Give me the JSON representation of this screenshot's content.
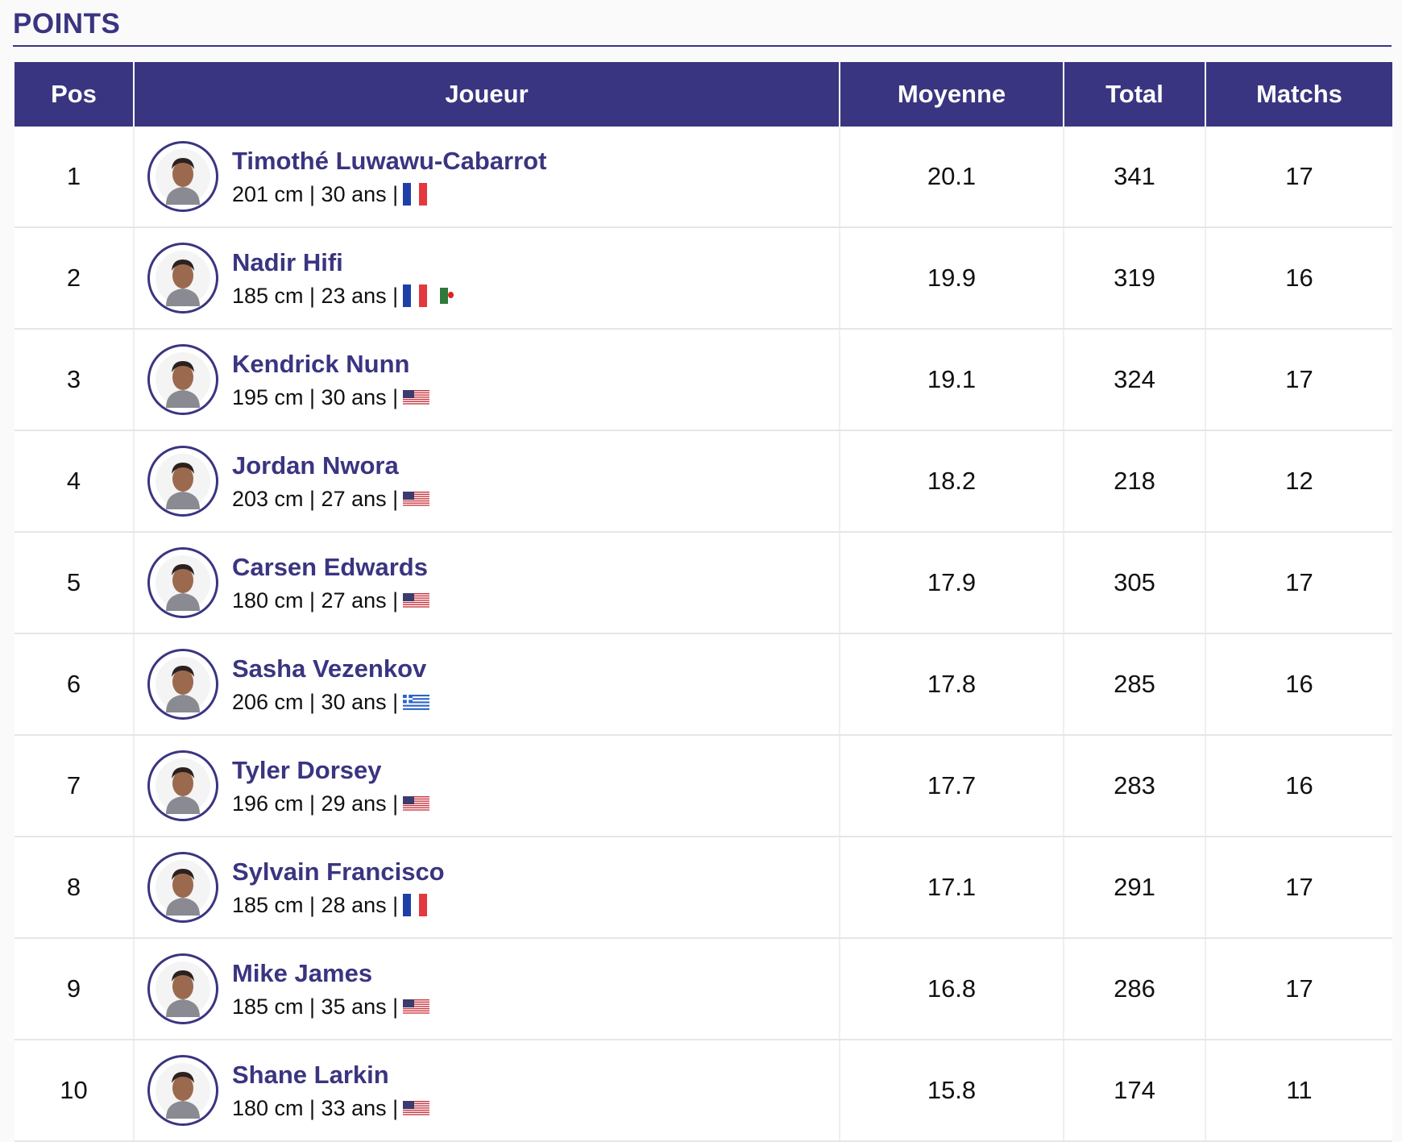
{
  "section_title": "POINTS",
  "headers": {
    "pos": "Pos",
    "player": "Joueur",
    "avg": "Moyenne",
    "total": "Total",
    "games": "Matchs"
  },
  "colors": {
    "primary": "#3a3580",
    "fr_blue": "#1f3fa8",
    "fr_red": "#e4383f",
    "us_red": "#c8323c",
    "gr_blue": "#2a63c8",
    "dz_green": "#2f7a3a"
  },
  "players": [
    {
      "pos": "1",
      "name": "Timothé Luwawu-Cabarrot",
      "meta": "201 cm | 30 ans |",
      "flags": [
        "fr"
      ],
      "avg": "20.1",
      "total": "341",
      "games": "17"
    },
    {
      "pos": "2",
      "name": "Nadir Hifi",
      "meta": "185 cm | 23 ans |",
      "flags": [
        "fr",
        "dz"
      ],
      "avg": "19.9",
      "total": "319",
      "games": "16"
    },
    {
      "pos": "3",
      "name": "Kendrick Nunn",
      "meta": "195 cm | 30 ans |",
      "flags": [
        "us"
      ],
      "avg": "19.1",
      "total": "324",
      "games": "17"
    },
    {
      "pos": "4",
      "name": "Jordan Nwora",
      "meta": "203 cm | 27 ans |",
      "flags": [
        "us"
      ],
      "avg": "18.2",
      "total": "218",
      "games": "12"
    },
    {
      "pos": "5",
      "name": "Carsen Edwards",
      "meta": "180 cm | 27 ans |",
      "flags": [
        "us"
      ],
      "avg": "17.9",
      "total": "305",
      "games": "17"
    },
    {
      "pos": "6",
      "name": "Sasha Vezenkov",
      "meta": "206 cm | 30 ans |",
      "flags": [
        "gr"
      ],
      "avg": "17.8",
      "total": "285",
      "games": "16"
    },
    {
      "pos": "7",
      "name": "Tyler Dorsey",
      "meta": "196 cm | 29 ans |",
      "flags": [
        "us"
      ],
      "avg": "17.7",
      "total": "283",
      "games": "16"
    },
    {
      "pos": "8",
      "name": "Sylvain Francisco",
      "meta": "185 cm | 28 ans |",
      "flags": [
        "fr"
      ],
      "avg": "17.1",
      "total": "291",
      "games": "17"
    },
    {
      "pos": "9",
      "name": "Mike James",
      "meta": "185 cm | 35 ans |",
      "flags": [
        "us"
      ],
      "avg": "16.8",
      "total": "286",
      "games": "17"
    },
    {
      "pos": "10",
      "name": "Shane Larkin",
      "meta": "180 cm | 33 ans |",
      "flags": [
        "us"
      ],
      "avg": "15.8",
      "total": "174",
      "games": "11"
    }
  ]
}
